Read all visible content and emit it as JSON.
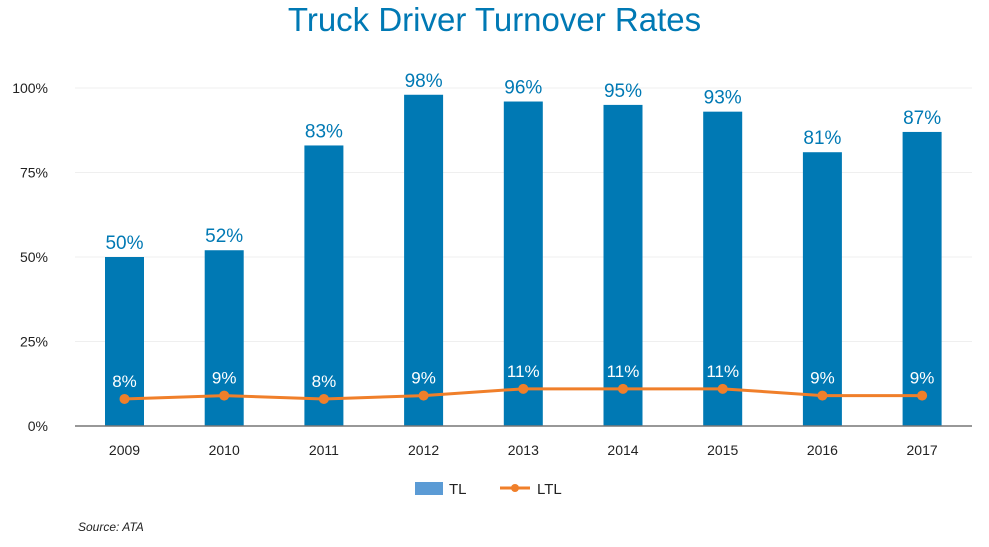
{
  "chart_data": {
    "type": "bar",
    "title": "Truck Driver Turnover Rates",
    "categories": [
      "2009",
      "2010",
      "2011",
      "2012",
      "2013",
      "2014",
      "2015",
      "2016",
      "2017"
    ],
    "series": [
      {
        "name": "TL",
        "type": "bar",
        "values": [
          50,
          52,
          83,
          98,
          96,
          95,
          93,
          81,
          87
        ],
        "labels": [
          "50%",
          "52%",
          "83%",
          "98%",
          "96%",
          "95%",
          "93%",
          "81%",
          "87%"
        ],
        "color": "#0079b4",
        "legend_color": "#5b9bd5"
      },
      {
        "name": "LTL",
        "type": "line",
        "values": [
          8,
          9,
          8,
          9,
          11,
          11,
          11,
          9,
          9
        ],
        "labels": [
          "8%",
          "9%",
          "8%",
          "9%",
          "11%",
          "11%",
          "11%",
          "9%",
          "9%"
        ],
        "color": "#f07f2a"
      }
    ],
    "ylim": [
      0,
      100
    ],
    "yticks": [
      0,
      25,
      50,
      75,
      100
    ],
    "ytick_labels": [
      "0%",
      "25%",
      "50%",
      "75%",
      "100%"
    ],
    "grid": true,
    "legend": "bottom",
    "source": "Source: ATA"
  }
}
